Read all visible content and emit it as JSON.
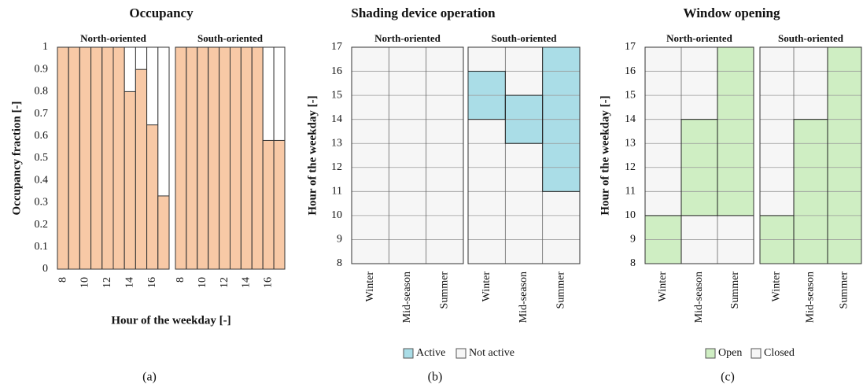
{
  "chart_data": [
    {
      "type": "bar",
      "title": "Occupancy",
      "xlabel": "Hour of the weekday [-]",
      "ylabel": "Occupancy fraction [-]",
      "caption": "(a)",
      "categories": [
        8,
        null,
        10,
        null,
        12,
        null,
        14,
        null,
        16,
        null
      ],
      "panels": [
        {
          "title": "North-oriented",
          "values": [
            1,
            1,
            1,
            1,
            1,
            1,
            0.8,
            0.9,
            0.65,
            0.33
          ]
        },
        {
          "title": "South-oriented",
          "values": [
            1,
            1,
            1,
            1,
            1,
            1,
            1,
            1,
            0.58,
            0.58
          ]
        }
      ],
      "color": "#f8c9a6",
      "ylim": [
        0,
        1
      ],
      "yticks": [
        0,
        0.1,
        0.2,
        0.3,
        0.4,
        0.5,
        0.6,
        0.7,
        0.8,
        0.9,
        1
      ]
    },
    {
      "type": "schedule",
      "title": "Shading device operation",
      "ylabel": "Hour of the weekday [-]",
      "caption": "(b)",
      "categories": [
        "Winter",
        "Mid-season",
        "Summer"
      ],
      "panels": [
        {
          "title": "North-oriented",
          "start": [
            null,
            null,
            null
          ],
          "end": [
            null,
            null,
            null
          ]
        },
        {
          "title": "South-oriented",
          "start": [
            14,
            13,
            11
          ],
          "end": [
            16,
            15,
            17
          ]
        }
      ],
      "series": [
        {
          "name": "Active",
          "color": "#aadde7"
        },
        {
          "name": "Not active",
          "color": "#f6f6f6"
        }
      ],
      "ylim": [
        8,
        17
      ],
      "yticks": [
        8,
        9,
        10,
        11,
        12,
        13,
        14,
        15,
        16,
        17
      ],
      "grid": true
    },
    {
      "type": "schedule",
      "title": "Window opening",
      "ylabel": "Hour of the weekday [-]",
      "caption": "(c)",
      "categories": [
        "Winter",
        "Mid-season",
        "Summer"
      ],
      "panels": [
        {
          "title": "North-oriented",
          "start": [
            8,
            10,
            10
          ],
          "end": [
            10,
            14,
            17
          ]
        },
        {
          "title": "South-oriented",
          "start": [
            8,
            8,
            8
          ],
          "end": [
            10,
            14,
            17
          ]
        }
      ],
      "series": [
        {
          "name": "Open",
          "color": "#cfeec3"
        },
        {
          "name": "Closed",
          "color": "#f6f6f6"
        }
      ],
      "ylim": [
        8,
        17
      ],
      "yticks": [
        8,
        9,
        10,
        11,
        12,
        13,
        14,
        15,
        16,
        17
      ],
      "grid": true
    }
  ]
}
